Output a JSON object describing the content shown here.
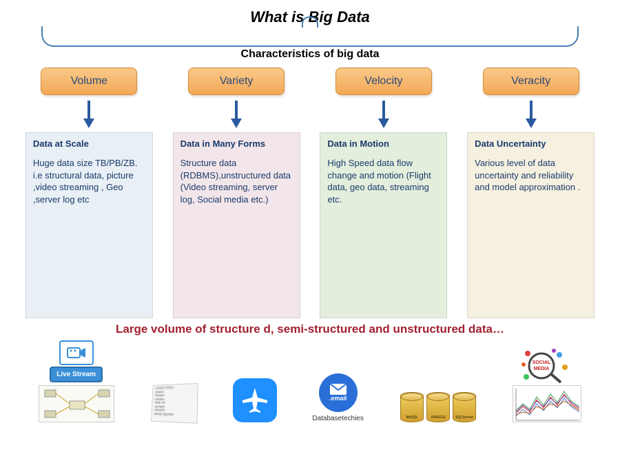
{
  "title": "What is Big Data",
  "subtitle": "Characteristics of big data",
  "columns": [
    {
      "label": "Volume",
      "card_bg": "#e8eff5",
      "heading": "Data at Scale",
      "body": "Huge data size TB/PB/ZB.  i.e structural data, picture ,video  streaming , Geo ,server log etc"
    },
    {
      "label": "Variety",
      "card_bg": "#f3e6ea",
      "heading": "Data in Many Forms",
      "body": "Structure data (RDBMS),unstructured data (Video streaming, server log, Social media etc.)"
    },
    {
      "label": "Velocity",
      "card_bg": "#e3eedd",
      "heading": "Data in Motion",
      "body": "High Speed data flow change and motion (Flight data, geo data, streaming etc."
    },
    {
      "label": "Veracity",
      "card_bg": "#f5f0e0",
      "heading": "Data Uncertainty",
      "body": "Various level of data uncertainty  and reliability and model approximation ."
    }
  ],
  "footer": "Large volume of structure d, semi-structured and unstructured data…",
  "arrow_color": "#2a5aa0",
  "icons": {
    "livestream": "Live Stream",
    "email": ".email",
    "dbtech": "Databasetechies",
    "dbs": [
      "MySQL",
      "ORACLE",
      "SQLServer"
    ],
    "social": "SOCIAL MEDIA"
  }
}
